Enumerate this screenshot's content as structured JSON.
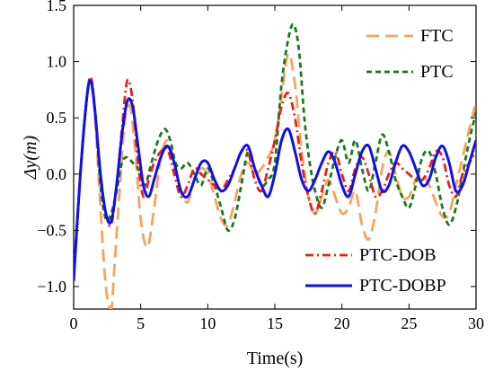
{
  "chart_data": {
    "type": "line",
    "xlabel": "Time(s)",
    "ylabel": "Δy(m)",
    "xlim": [
      0,
      30
    ],
    "ylim": [
      -1.2,
      1.5
    ],
    "xticks": [
      0,
      5,
      10,
      15,
      20,
      25,
      30
    ],
    "yticks": [
      -1.0,
      -0.5,
      0.0,
      0.5,
      1.0,
      1.5
    ],
    "xtick_labels": [
      "0",
      "5",
      "10",
      "15",
      "20",
      "25",
      "30"
    ],
    "ytick_labels": [
      "−1.0",
      "−0.5",
      "0.0",
      "0.5",
      "1.0",
      "1.5"
    ],
    "grid": false,
    "legend": [
      {
        "name": "FTC",
        "placement": "top-right"
      },
      {
        "name": "PTC",
        "placement": "top-right"
      },
      {
        "name": "PTC-DOB",
        "placement": "bottom-right"
      },
      {
        "name": "PTC-DOBP",
        "placement": "bottom-right"
      }
    ],
    "series": [
      {
        "name": "FTC",
        "color": "#f4a460",
        "dash": "long-dash",
        "x": [
          0,
          0.5,
          1.0,
          1.3,
          1.6,
          2.0,
          2.4,
          2.8,
          3.0,
          3.4,
          3.8,
          4.2,
          4.6,
          5.0,
          5.5,
          6.0,
          6.5,
          7.0,
          7.5,
          8.0,
          8.5,
          9.0,
          9.5,
          10.0,
          10.5,
          11.0,
          11.5,
          12.0,
          12.5,
          13.0,
          13.5,
          14.0,
          14.5,
          15.0,
          15.5,
          16.0,
          16.5,
          17.0,
          17.5,
          18.0,
          18.5,
          19.0,
          19.5,
          20.0,
          20.5,
          21.0,
          21.5,
          22.0,
          22.5,
          23.0,
          23.5,
          24.0,
          24.5,
          25.0,
          25.5,
          26.0,
          26.5,
          27.0,
          27.5,
          28.0,
          28.5,
          29.0,
          29.5,
          30.0
        ],
        "y": [
          -0.95,
          0.0,
          0.7,
          0.85,
          0.5,
          -0.3,
          -1.0,
          -1.2,
          -0.9,
          -0.2,
          0.45,
          0.6,
          0.2,
          -0.4,
          -0.65,
          -0.3,
          0.15,
          0.3,
          0.1,
          -0.15,
          -0.25,
          -0.05,
          0.05,
          0.0,
          -0.2,
          -0.4,
          -0.45,
          -0.25,
          0.0,
          0.1,
          0.0,
          0.05,
          0.15,
          0.3,
          0.7,
          1.07,
          0.8,
          0.2,
          -0.2,
          -0.35,
          -0.2,
          -0.05,
          -0.2,
          -0.35,
          -0.3,
          -0.15,
          -0.45,
          -0.58,
          -0.35,
          0.05,
          0.2,
          0.0,
          -0.2,
          -0.2,
          -0.05,
          0.0,
          -0.1,
          -0.25,
          -0.38,
          -0.35,
          -0.1,
          0.15,
          0.4,
          0.65
        ]
      },
      {
        "name": "PTC",
        "color": "#1a7a1a",
        "dash": "dash",
        "x": [
          0,
          0.5,
          1.0,
          1.3,
          1.6,
          2.0,
          2.4,
          2.8,
          3.2,
          3.6,
          4.0,
          4.4,
          4.8,
          5.3,
          5.8,
          6.3,
          6.8,
          7.2,
          7.6,
          8.0,
          8.5,
          9.0,
          9.5,
          10.0,
          10.5,
          11.0,
          11.5,
          12.0,
          12.5,
          13.0,
          13.5,
          14.0,
          14.5,
          15.0,
          15.5,
          16.0,
          16.4,
          16.8,
          17.2,
          17.6,
          18.0,
          18.5,
          19.0,
          19.5,
          20.0,
          20.5,
          21.0,
          21.5,
          22.0,
          22.5,
          23.0,
          23.5,
          24.0,
          24.5,
          25.0,
          25.5,
          26.0,
          26.5,
          27.0,
          27.5,
          28.0,
          28.5,
          29.0,
          29.5,
          30.0
        ],
        "y": [
          -0.95,
          0.0,
          0.7,
          0.85,
          0.55,
          -0.1,
          -0.4,
          -0.35,
          -0.15,
          0.1,
          0.15,
          0.1,
          0.05,
          -0.1,
          0.1,
          0.3,
          0.4,
          0.3,
          0.1,
          0.05,
          0.1,
          0.0,
          -0.1,
          0.05,
          -0.1,
          -0.3,
          -0.5,
          -0.4,
          -0.1,
          0.2,
          0.05,
          -0.1,
          -0.05,
          0.1,
          0.8,
          1.2,
          1.33,
          1.1,
          0.5,
          0.1,
          -0.15,
          -0.3,
          -0.1,
          0.15,
          0.3,
          0.1,
          0.3,
          0.05,
          -0.15,
          0.1,
          0.35,
          0.2,
          -0.05,
          -0.2,
          -0.3,
          -0.1,
          0.15,
          0.2,
          0.0,
          -0.3,
          -0.45,
          -0.3,
          0.0,
          0.3,
          0.55
        ]
      },
      {
        "name": "PTC-DOB",
        "color": "#e8201a",
        "dash": "dash-dot",
        "x": [
          0,
          0.5,
          1.0,
          1.3,
          1.6,
          2.0,
          2.4,
          2.8,
          3.2,
          3.6,
          4.0,
          4.4,
          4.8,
          5.2,
          5.6,
          6.0,
          6.5,
          7.0,
          7.5,
          8.0,
          8.5,
          9.0,
          9.5,
          10.0,
          10.5,
          11.0,
          11.5,
          12.0,
          12.5,
          13.0,
          13.5,
          14.0,
          14.5,
          15.0,
          15.5,
          16.0,
          16.5,
          17.0,
          17.5,
          18.0,
          18.5,
          19.0,
          19.5,
          20.0,
          20.5,
          21.0,
          21.5,
          22.0,
          22.5,
          23.0,
          23.5,
          24.0,
          24.5,
          25.0,
          25.5,
          26.0,
          26.5,
          27.0,
          27.5,
          28.0,
          28.5,
          29.0,
          29.5,
          30.0
        ],
        "y": [
          -0.95,
          0.0,
          0.7,
          0.85,
          0.55,
          0.0,
          -0.35,
          -0.45,
          -0.1,
          0.4,
          0.83,
          0.65,
          0.1,
          -0.2,
          -0.05,
          0.1,
          0.2,
          0.22,
          0.0,
          -0.2,
          -0.1,
          0.05,
          0.0,
          -0.05,
          -0.1,
          -0.15,
          -0.05,
          0.05,
          0.2,
          0.2,
          -0.05,
          -0.15,
          0.05,
          0.3,
          0.6,
          0.72,
          0.5,
          0.1,
          -0.2,
          -0.35,
          -0.15,
          0.1,
          0.2,
          0.0,
          -0.15,
          0.05,
          0.15,
          0.0,
          -0.2,
          -0.15,
          0.0,
          0.1,
          0.05,
          0.0,
          -0.05,
          -0.05,
          0.05,
          0.2,
          0.15,
          -0.1,
          -0.2,
          0.0,
          0.1,
          0.2
        ]
      },
      {
        "name": "PTC-DOBP",
        "color": "#1010ee",
        "dash": "solid",
        "x": [
          0,
          0.5,
          1.0,
          1.3,
          1.6,
          2.0,
          2.4,
          2.8,
          3.2,
          3.6,
          4.0,
          4.4,
          4.8,
          5.2,
          5.6,
          6.0,
          6.5,
          7.0,
          7.5,
          8.0,
          8.5,
          9.0,
          9.5,
          10.0,
          10.5,
          11.0,
          11.5,
          12.0,
          12.5,
          13.0,
          13.5,
          14.0,
          14.5,
          15.0,
          15.5,
          16.0,
          16.5,
          17.0,
          17.5,
          18.0,
          18.5,
          19.0,
          19.5,
          20.0,
          20.5,
          21.0,
          21.5,
          22.0,
          22.5,
          23.0,
          23.5,
          24.0,
          24.5,
          25.0,
          25.5,
          26.0,
          26.5,
          27.0,
          27.5,
          28.0,
          28.5,
          29.0,
          29.5,
          30.0
        ],
        "y": [
          -0.95,
          0.0,
          0.7,
          0.82,
          0.55,
          0.0,
          -0.35,
          -0.42,
          -0.1,
          0.35,
          0.65,
          0.6,
          0.25,
          -0.1,
          -0.2,
          -0.05,
          0.15,
          0.25,
          0.1,
          -0.15,
          -0.2,
          -0.05,
          0.1,
          0.1,
          -0.05,
          -0.15,
          -0.1,
          0.05,
          0.2,
          0.25,
          0.05,
          -0.1,
          -0.2,
          0.0,
          0.3,
          0.4,
          0.2,
          -0.05,
          -0.15,
          -0.05,
          0.1,
          0.2,
          0.1,
          -0.1,
          -0.2,
          0.0,
          0.2,
          0.25,
          0.05,
          -0.15,
          -0.1,
          0.1,
          0.25,
          0.2,
          0.05,
          -0.1,
          -0.05,
          0.15,
          0.25,
          0.1,
          -0.15,
          -0.1,
          0.1,
          0.3
        ]
      }
    ]
  }
}
